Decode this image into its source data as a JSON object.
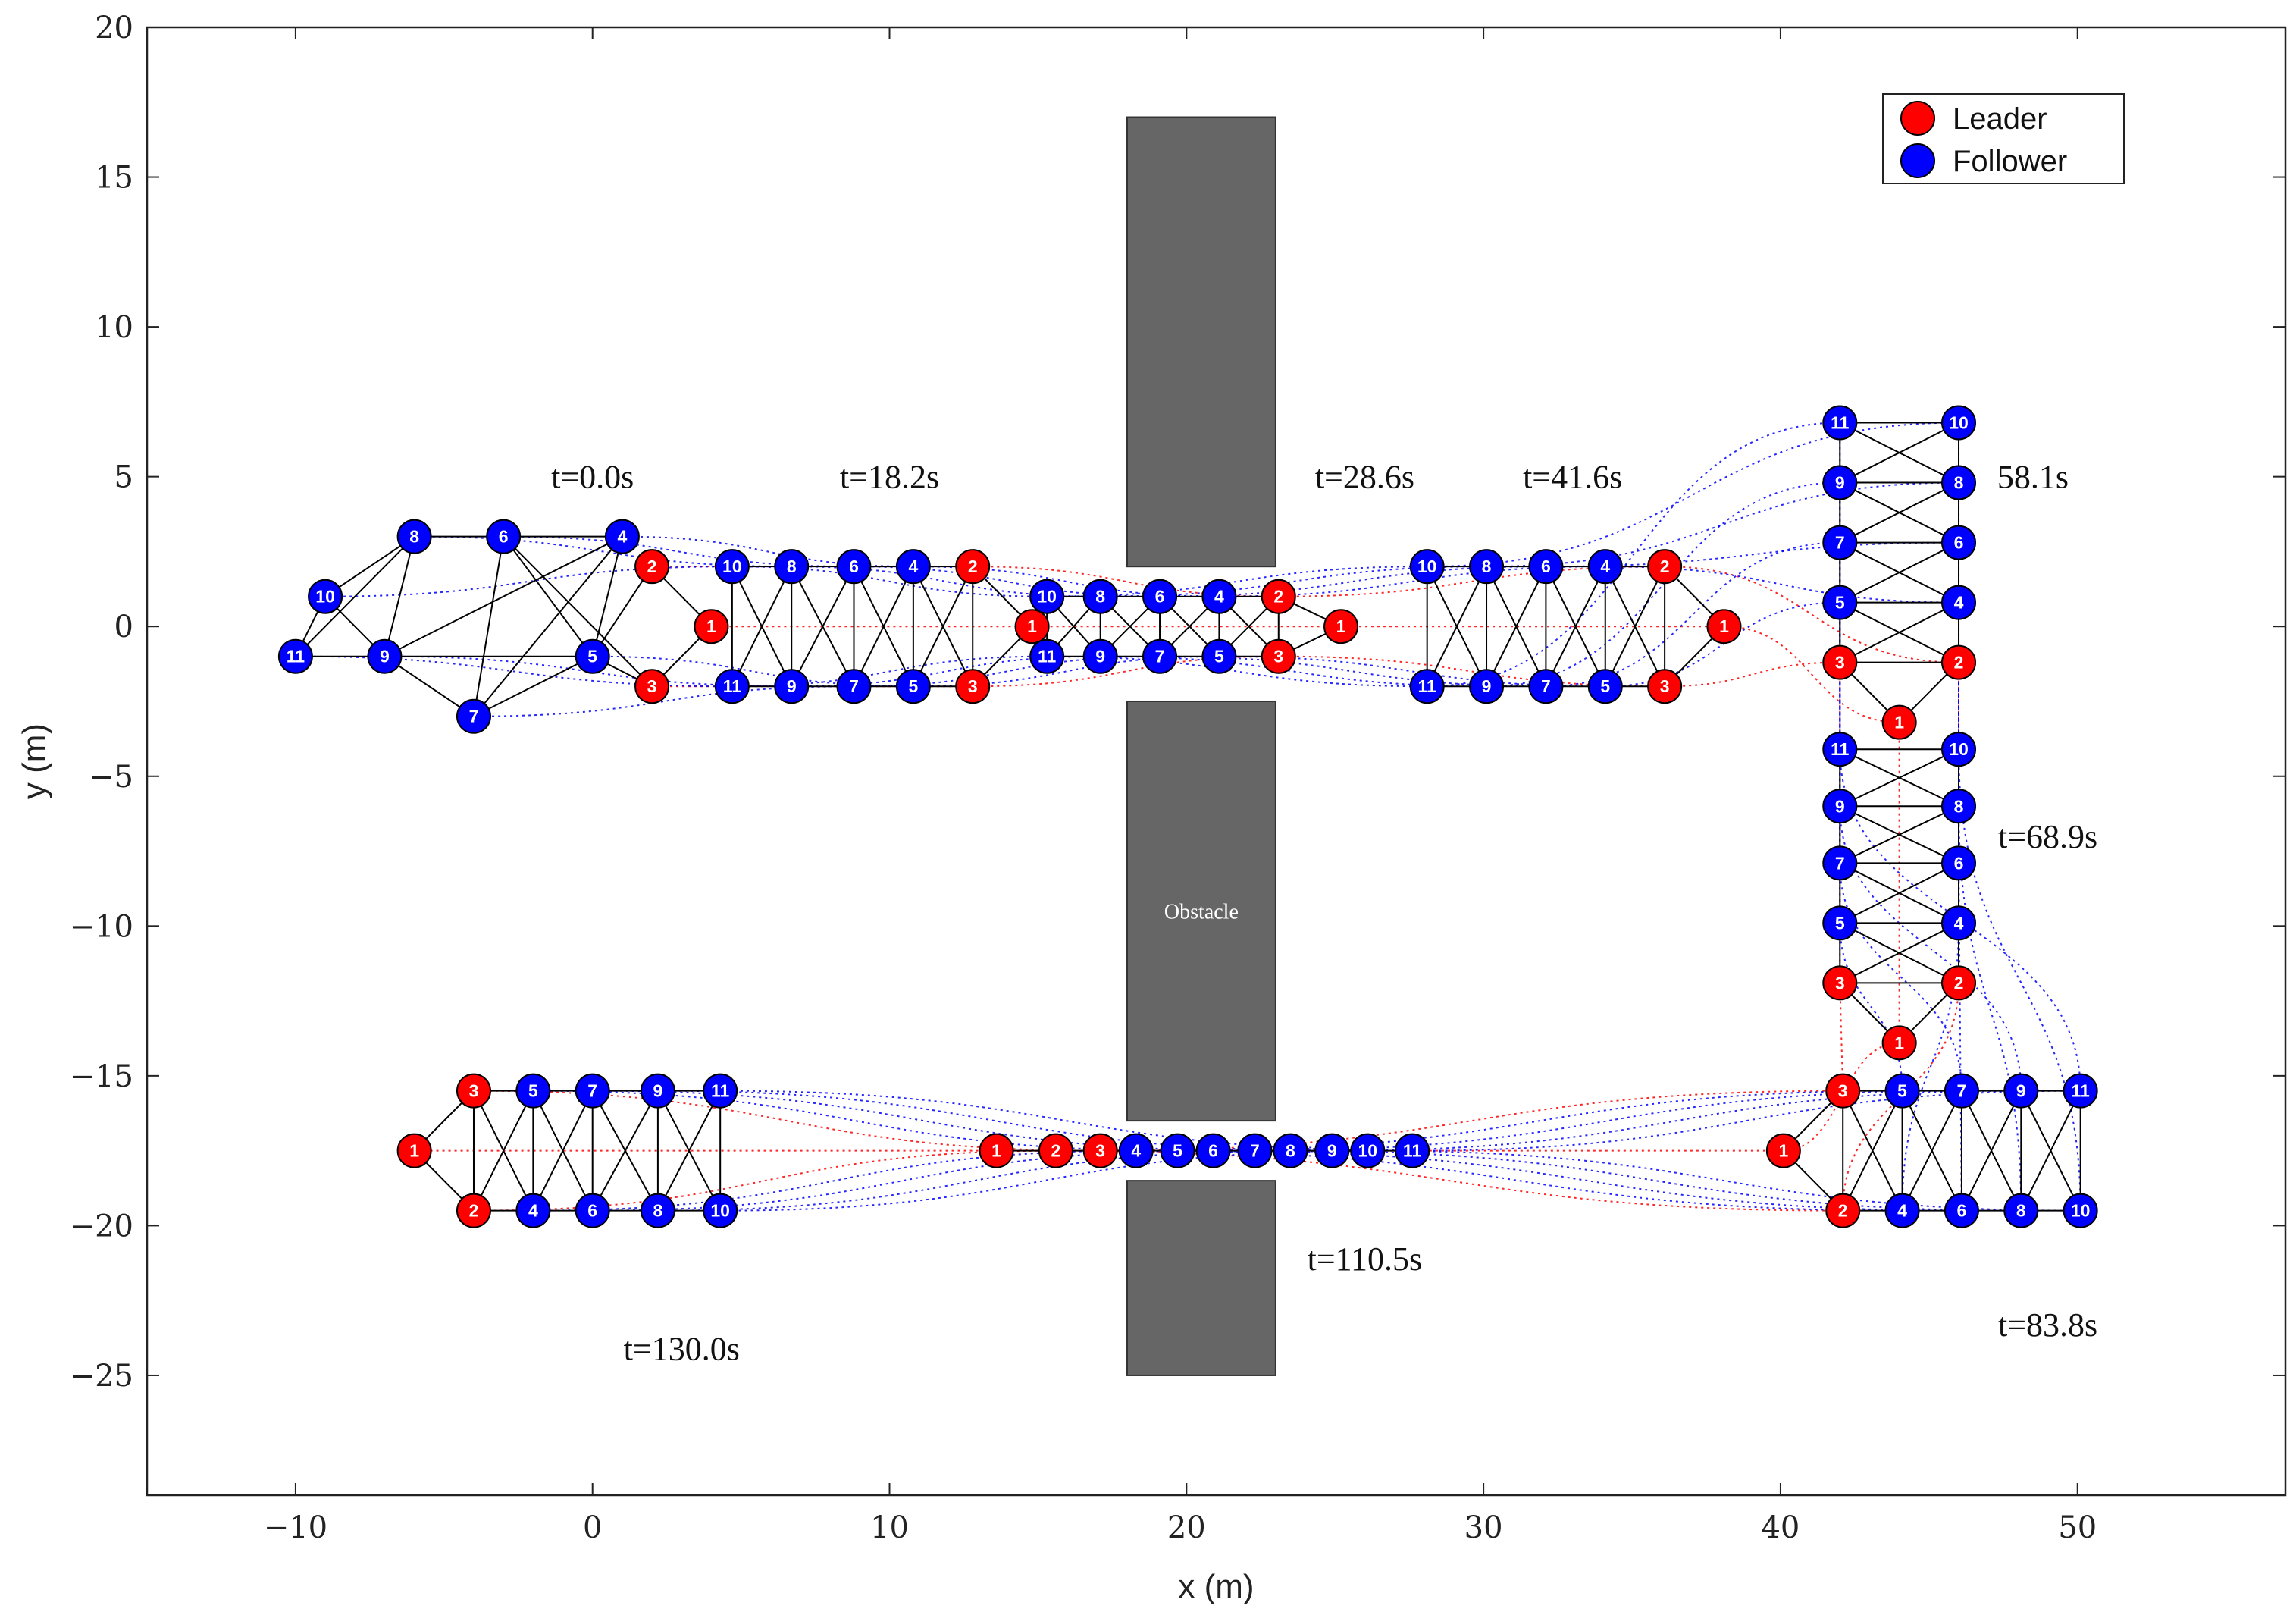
{
  "chart_data": {
    "type": "scatter",
    "xlabel": "x (m)",
    "ylabel": "y (m)",
    "xlim": [
      -15,
      57
    ],
    "ylim": [
      -29,
      20
    ],
    "xticks": [
      -10,
      0,
      10,
      20,
      30,
      40,
      50
    ],
    "yticks": [
      20,
      15,
      10,
      5,
      0,
      -5,
      -10,
      -15,
      -20,
      -25
    ],
    "xtick_labels": [
      "−10",
      "0",
      "10",
      "20",
      "30",
      "40",
      "50"
    ],
    "ytick_labels": [
      "20",
      "15",
      "10",
      "5",
      "0",
      "−5",
      "−10",
      "−15",
      "−20",
      "−25"
    ],
    "grid": false,
    "legend": {
      "placement": "top-right",
      "entries": [
        {
          "label": "Leader",
          "color": "#ff0000"
        },
        {
          "label": "Follower",
          "color": "#0000ff"
        }
      ]
    },
    "colors": {
      "leader": "#ff0000",
      "follower": "#0000ff",
      "obstacle": "#666666",
      "edge": "#000000"
    },
    "obstacles": [
      {
        "x0": 18,
        "x1": 23,
        "y0": 2,
        "y1": 17,
        "label": ""
      },
      {
        "x0": 18,
        "x1": 23,
        "y0": -16.5,
        "y1": -2.5,
        "label": "Obstacle"
      },
      {
        "x0": 18,
        "x1": 23,
        "y0": -25,
        "y1": -18.5,
        "label": ""
      }
    ],
    "time_labels": [
      {
        "text": "t=0.0s",
        "x": 0,
        "y": 5
      },
      {
        "text": "t=18.2s",
        "x": 10,
        "y": 5
      },
      {
        "text": "t=28.6s",
        "x": 26,
        "y": 5
      },
      {
        "text": "t=41.6s",
        "x": 33,
        "y": 5
      },
      {
        "text": "58.1s",
        "x": 48.5,
        "y": 5
      },
      {
        "text": "t=68.9s",
        "x": 49,
        "y": -7
      },
      {
        "text": "t=83.8s",
        "x": 49,
        "y": -23.3
      },
      {
        "text": "t=110.5s",
        "x": 26,
        "y": -21.1
      },
      {
        "text": "t=130.0s",
        "x": 3,
        "y": -24.1
      }
    ],
    "snapshots": [
      {
        "time": "t=0.0s",
        "agents": [
          {
            "id": 1,
            "x": 4,
            "y": 0
          },
          {
            "id": 2,
            "x": 2,
            "y": 2
          },
          {
            "id": 3,
            "x": 2,
            "y": -2
          },
          {
            "id": 4,
            "x": 1,
            "y": 3
          },
          {
            "id": 5,
            "x": 0,
            "y": -1
          },
          {
            "id": 6,
            "x": -3,
            "y": 3
          },
          {
            "id": 7,
            "x": -4,
            "y": -3
          },
          {
            "id": 8,
            "x": -6,
            "y": 3
          },
          {
            "id": 9,
            "x": -7,
            "y": -1
          },
          {
            "id": 10,
            "x": -9,
            "y": 1
          },
          {
            "id": 11,
            "x": -10,
            "y": -1
          }
        ]
      },
      {
        "time": "t=18.2s",
        "agents": [
          {
            "id": 1,
            "x": 14.8,
            "y": 0
          },
          {
            "id": 2,
            "x": 12.8,
            "y": 2
          },
          {
            "id": 3,
            "x": 12.8,
            "y": -2
          },
          {
            "id": 4,
            "x": 10.8,
            "y": 2
          },
          {
            "id": 5,
            "x": 10.8,
            "y": -2
          },
          {
            "id": 6,
            "x": 8.8,
            "y": 2
          },
          {
            "id": 7,
            "x": 8.8,
            "y": -2
          },
          {
            "id": 8,
            "x": 6.7,
            "y": 2
          },
          {
            "id": 9,
            "x": 6.7,
            "y": -2
          },
          {
            "id": 10,
            "x": 4.7,
            "y": 2
          },
          {
            "id": 11,
            "x": 4.7,
            "y": -2
          }
        ]
      },
      {
        "time": "t=28.6s",
        "agents": [
          {
            "id": 1,
            "x": 25.2,
            "y": 0
          },
          {
            "id": 2,
            "x": 23.1,
            "y": 1
          },
          {
            "id": 3,
            "x": 23.1,
            "y": -1
          },
          {
            "id": 4,
            "x": 21.1,
            "y": 1
          },
          {
            "id": 5,
            "x": 21.1,
            "y": -1
          },
          {
            "id": 6,
            "x": 19.1,
            "y": 1
          },
          {
            "id": 7,
            "x": 19.1,
            "y": -1
          },
          {
            "id": 8,
            "x": 17.1,
            "y": 1
          },
          {
            "id": 9,
            "x": 17.1,
            "y": -1
          },
          {
            "id": 10,
            "x": 15.3,
            "y": 1
          },
          {
            "id": 11,
            "x": 15.3,
            "y": -1
          }
        ]
      },
      {
        "time": "t=41.6s",
        "agents": [
          {
            "id": 1,
            "x": 38.1,
            "y": 0
          },
          {
            "id": 2,
            "x": 36.1,
            "y": 2
          },
          {
            "id": 3,
            "x": 36.1,
            "y": -2
          },
          {
            "id": 4,
            "x": 34.1,
            "y": 2
          },
          {
            "id": 5,
            "x": 34.1,
            "y": -2
          },
          {
            "id": 6,
            "x": 32.1,
            "y": 2
          },
          {
            "id": 7,
            "x": 32.1,
            "y": -2
          },
          {
            "id": 8,
            "x": 30.1,
            "y": 2
          },
          {
            "id": 9,
            "x": 30.1,
            "y": -2
          },
          {
            "id": 10,
            "x": 28.1,
            "y": 2
          },
          {
            "id": 11,
            "x": 28.1,
            "y": -2
          }
        ]
      },
      {
        "time": "58.1s",
        "agents": [
          {
            "id": 1,
            "x": 44,
            "y": -3.2
          },
          {
            "id": 2,
            "x": 46,
            "y": -1.2
          },
          {
            "id": 3,
            "x": 42,
            "y": -1.2
          },
          {
            "id": 4,
            "x": 46,
            "y": 0.8
          },
          {
            "id": 5,
            "x": 42,
            "y": 0.8
          },
          {
            "id": 6,
            "x": 46,
            "y": 2.8
          },
          {
            "id": 7,
            "x": 42,
            "y": 2.8
          },
          {
            "id": 8,
            "x": 46,
            "y": 4.8
          },
          {
            "id": 9,
            "x": 42,
            "y": 4.8
          },
          {
            "id": 10,
            "x": 46,
            "y": 6.8
          },
          {
            "id": 11,
            "x": 42,
            "y": 6.8
          }
        ]
      },
      {
        "time": "t=68.9s",
        "agents": [
          {
            "id": 1,
            "x": 44,
            "y": -13.9
          },
          {
            "id": 2,
            "x": 46,
            "y": -11.9
          },
          {
            "id": 3,
            "x": 42,
            "y": -11.9
          },
          {
            "id": 4,
            "x": 46,
            "y": -9.9
          },
          {
            "id": 5,
            "x": 42,
            "y": -9.9
          },
          {
            "id": 6,
            "x": 46,
            "y": -7.9
          },
          {
            "id": 7,
            "x": 42,
            "y": -7.9
          },
          {
            "id": 8,
            "x": 46,
            "y": -6.0
          },
          {
            "id": 9,
            "x": 42,
            "y": -6.0
          },
          {
            "id": 10,
            "x": 46,
            "y": -4.1
          },
          {
            "id": 11,
            "x": 42,
            "y": -4.1
          }
        ]
      },
      {
        "time": "t=83.8s",
        "agents": [
          {
            "id": 1,
            "x": 40.1,
            "y": -17.5
          },
          {
            "id": 2,
            "x": 42.1,
            "y": -19.5
          },
          {
            "id": 3,
            "x": 42.1,
            "y": -15.5
          },
          {
            "id": 4,
            "x": 44.1,
            "y": -19.5
          },
          {
            "id": 5,
            "x": 44.1,
            "y": -15.5
          },
          {
            "id": 6,
            "x": 46.1,
            "y": -19.5
          },
          {
            "id": 7,
            "x": 46.1,
            "y": -15.5
          },
          {
            "id": 8,
            "x": 48.1,
            "y": -19.5
          },
          {
            "id": 9,
            "x": 48.1,
            "y": -15.5
          },
          {
            "id": 10,
            "x": 50.1,
            "y": -19.5
          },
          {
            "id": 11,
            "x": 50.1,
            "y": -15.5
          }
        ]
      },
      {
        "time": "t=110.5s",
        "agents": [
          {
            "id": 1,
            "x": 13.6,
            "y": -17.5
          },
          {
            "id": 2,
            "x": 15.6,
            "y": -17.5
          },
          {
            "id": 3,
            "x": 17.1,
            "y": -17.5
          },
          {
            "id": 4,
            "x": 18.3,
            "y": -17.5
          },
          {
            "id": 5,
            "x": 19.7,
            "y": -17.5
          },
          {
            "id": 6,
            "x": 20.9,
            "y": -17.5
          },
          {
            "id": 7,
            "x": 22.3,
            "y": -17.5
          },
          {
            "id": 8,
            "x": 23.5,
            "y": -17.5
          },
          {
            "id": 9,
            "x": 24.9,
            "y": -17.5
          },
          {
            "id": 10,
            "x": 26.1,
            "y": -17.5
          },
          {
            "id": 11,
            "x": 27.6,
            "y": -17.5
          }
        ]
      },
      {
        "time": "t=130.0s",
        "agents": [
          {
            "id": 1,
            "x": -6,
            "y": -17.5
          },
          {
            "id": 2,
            "x": -4,
            "y": -19.5
          },
          {
            "id": 3,
            "x": -4,
            "y": -15.5
          },
          {
            "id": 4,
            "x": -2,
            "y": -19.5
          },
          {
            "id": 5,
            "x": -2,
            "y": -15.5
          },
          {
            "id": 6,
            "x": 0,
            "y": -19.5
          },
          {
            "id": 7,
            "x": 0,
            "y": -15.5
          },
          {
            "id": 8,
            "x": 2.2,
            "y": -19.5
          },
          {
            "id": 9,
            "x": 2.2,
            "y": -15.5
          },
          {
            "id": 10,
            "x": 4.3,
            "y": -19.5
          },
          {
            "id": 11,
            "x": 4.3,
            "y": -15.5
          }
        ]
      }
    ],
    "leader_ids": [
      1,
      2,
      3
    ],
    "formation_edges": [
      [
        1,
        2
      ],
      [
        1,
        3
      ],
      [
        2,
        3
      ],
      [
        2,
        4
      ],
      [
        2,
        5
      ],
      [
        3,
        4
      ],
      [
        3,
        5
      ],
      [
        4,
        5
      ],
      [
        4,
        6
      ],
      [
        4,
        7
      ],
      [
        5,
        6
      ],
      [
        5,
        7
      ],
      [
        6,
        7
      ],
      [
        6,
        8
      ],
      [
        6,
        9
      ],
      [
        7,
        8
      ],
      [
        7,
        9
      ],
      [
        8,
        9
      ],
      [
        8,
        10
      ],
      [
        8,
        11
      ],
      [
        9,
        10
      ],
      [
        9,
        11
      ],
      [
        10,
        11
      ]
    ],
    "initial_edges": [
      [
        1,
        2
      ],
      [
        1,
        3
      ],
      [
        2,
        5
      ],
      [
        3,
        5
      ],
      [
        4,
        5
      ],
      [
        4,
        6
      ],
      [
        4,
        7
      ],
      [
        4,
        9
      ],
      [
        5,
        6
      ],
      [
        5,
        9
      ],
      [
        5,
        7
      ],
      [
        6,
        7
      ],
      [
        6,
        8
      ],
      [
        6,
        3
      ],
      [
        8,
        9
      ],
      [
        8,
        10
      ],
      [
        8,
        11
      ],
      [
        9,
        10
      ],
      [
        9,
        11
      ],
      [
        9,
        7
      ],
      [
        10,
        11
      ]
    ],
    "line_edges": [
      [
        1,
        2
      ],
      [
        2,
        3
      ],
      [
        3,
        4
      ],
      [
        4,
        5
      ],
      [
        5,
        6
      ],
      [
        6,
        7
      ],
      [
        7,
        8
      ],
      [
        8,
        9
      ],
      [
        9,
        10
      ],
      [
        10,
        11
      ]
    ]
  }
}
